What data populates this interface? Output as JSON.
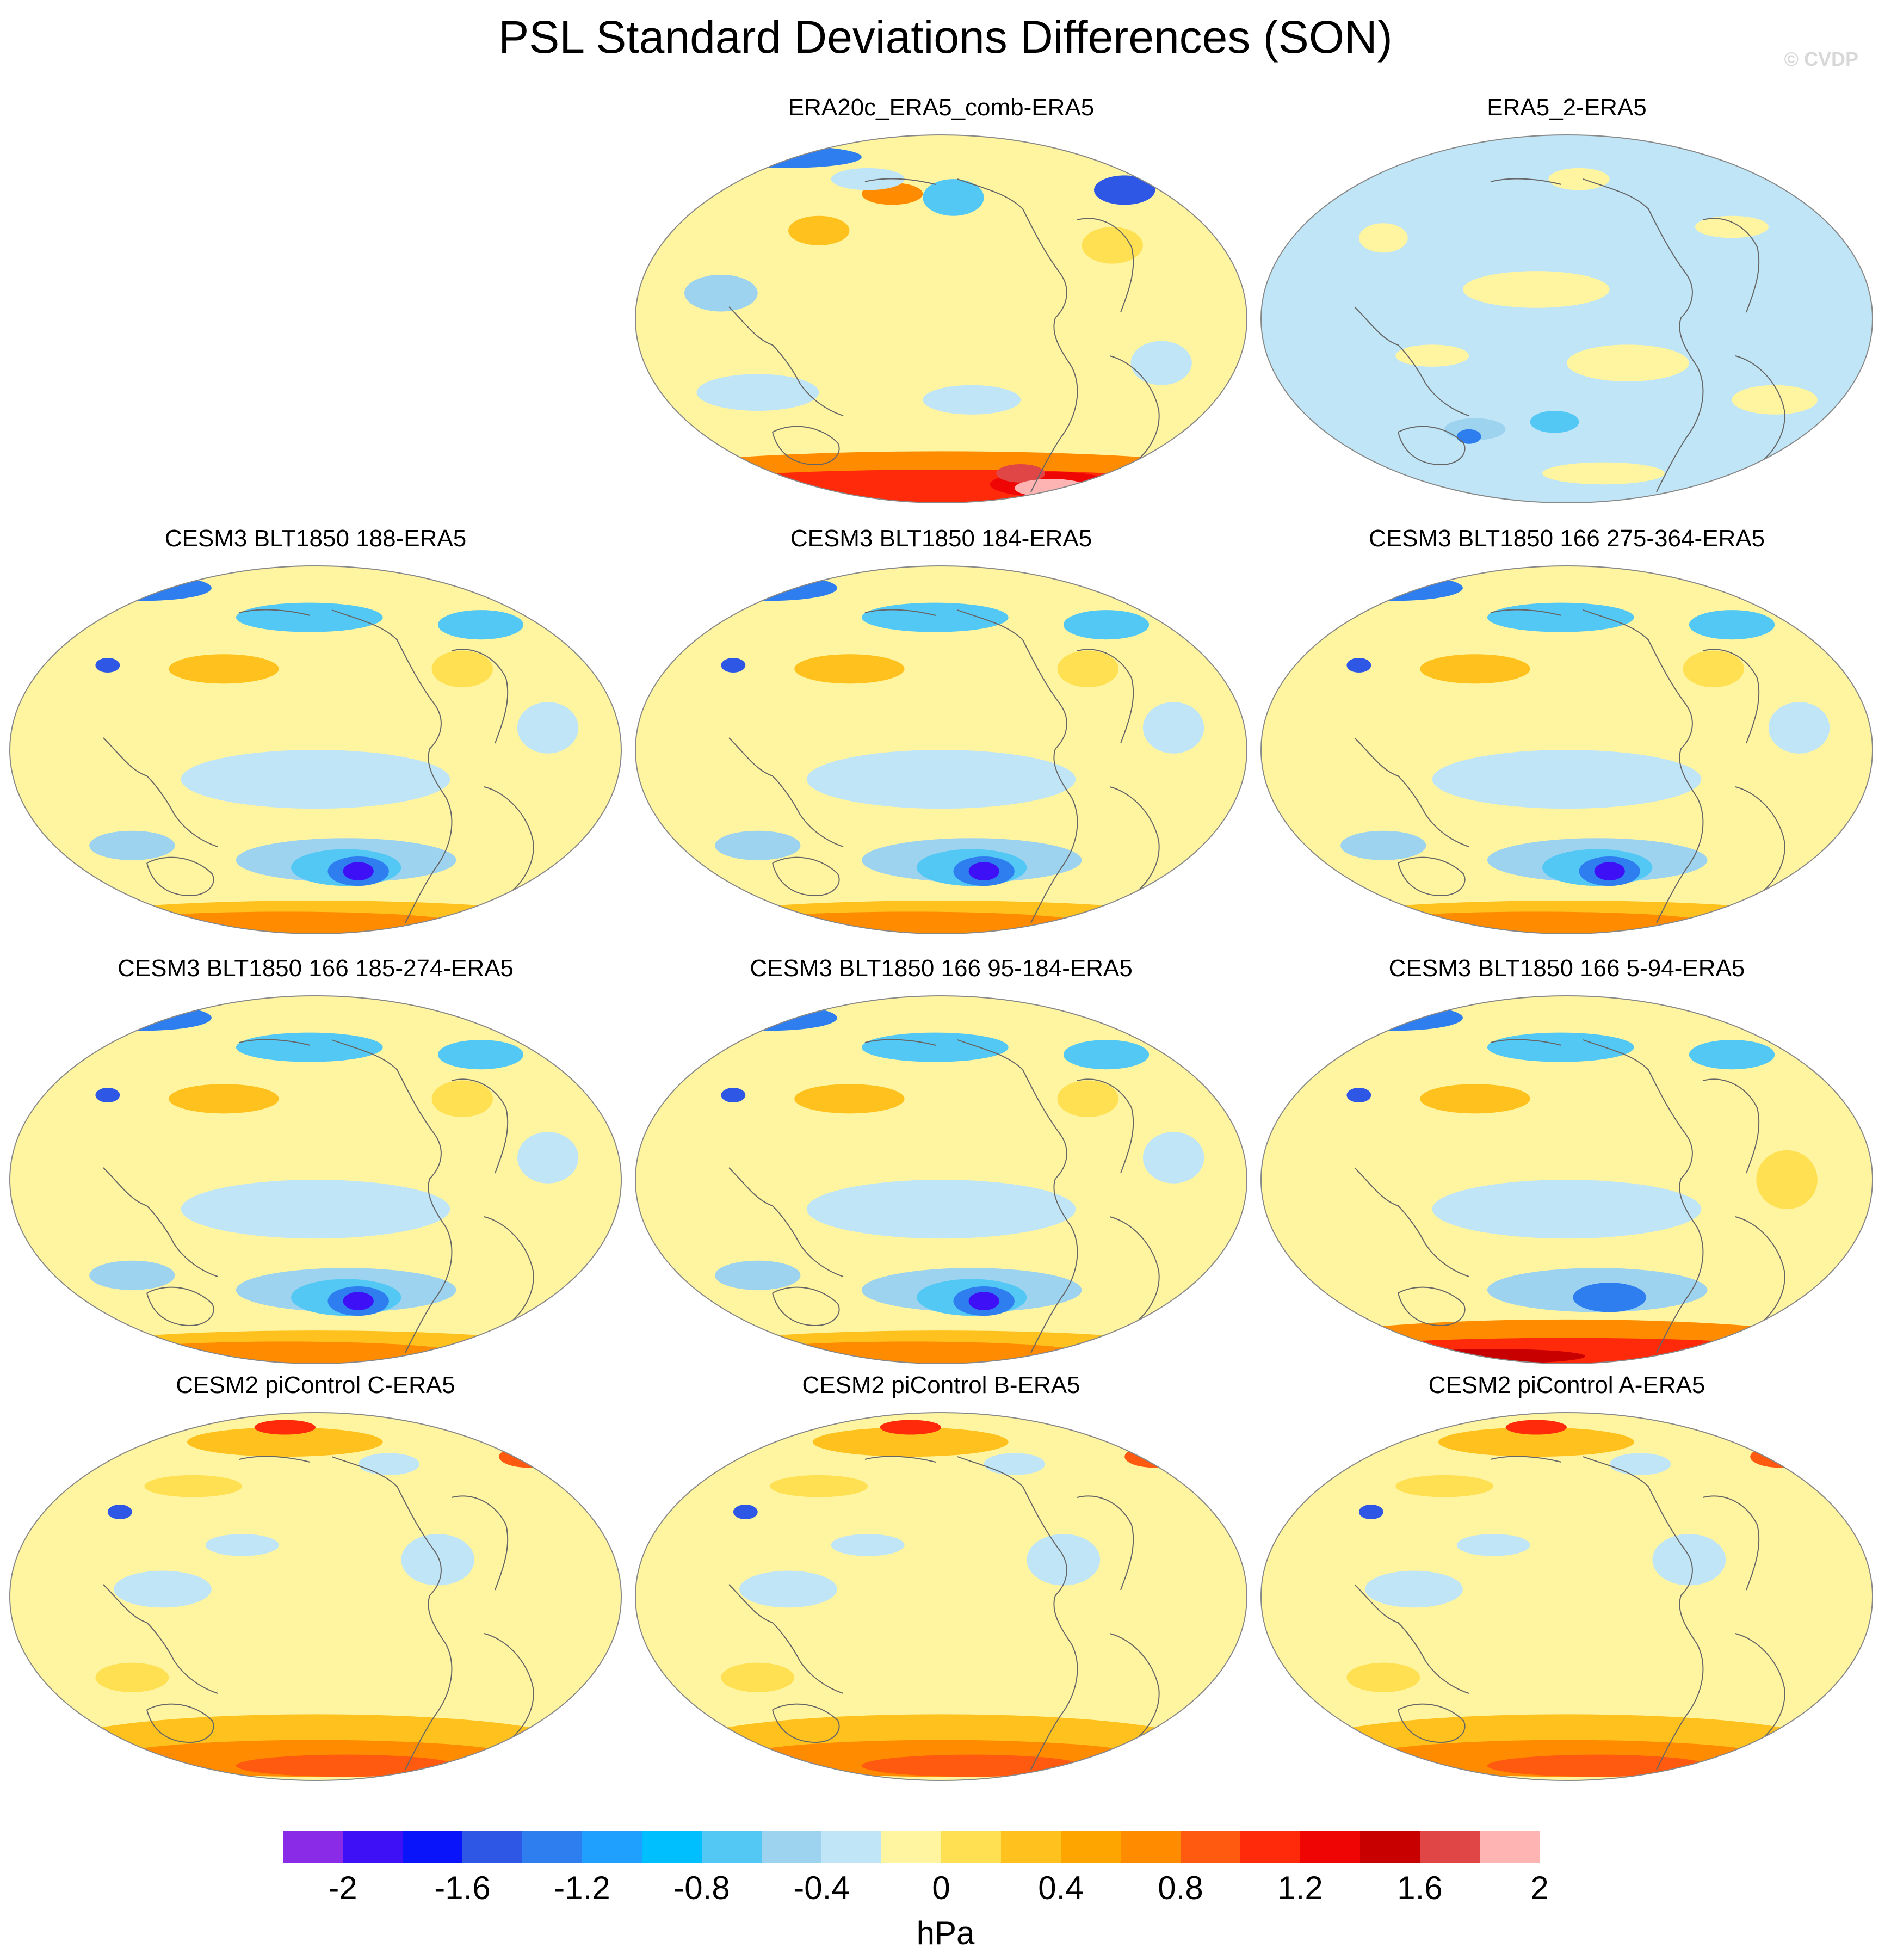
{
  "title": "PSL Standard Deviations Differences (SON)",
  "watermark": "© CVDP",
  "units": "hPa",
  "panels": [
    {
      "title": "ERA20c_ERA5_comb-ERA5",
      "scheme": "era20c"
    },
    {
      "title": "ERA5_2-ERA5",
      "scheme": "era5"
    },
    {
      "title": "CESM3 BLT1850 188-ERA5",
      "scheme": "cesm3"
    },
    {
      "title": "CESM3 BLT1850 184-ERA5",
      "scheme": "cesm3"
    },
    {
      "title": "CESM3 BLT1850 166 275-364-ERA5",
      "scheme": "cesm3"
    },
    {
      "title": "CESM3 BLT1850 166 185-274-ERA5",
      "scheme": "cesm3"
    },
    {
      "title": "CESM3 BLT1850 166 95-184-ERA5",
      "scheme": "cesm3"
    },
    {
      "title": "CESM3 BLT1850 166 5-94-ERA5",
      "scheme": "cesm3s"
    },
    {
      "title": "CESM2 piControl C-ERA5",
      "scheme": "cesm2"
    },
    {
      "title": "CESM2 piControl B-ERA5",
      "scheme": "cesm2"
    },
    {
      "title": "CESM2 piControl A-ERA5",
      "scheme": "cesm2"
    }
  ],
  "colorbar": {
    "colors": [
      "#8a2be8",
      "#3d10f5",
      "#0a14fa",
      "#2e57e6",
      "#2e7ef0",
      "#1fa0ff",
      "#00bfff",
      "#54c8f5",
      "#9dd3ef",
      "#bfe5f7",
      "#fff5a0",
      "#ffe052",
      "#ffc11e",
      "#ffa500",
      "#ff8c00",
      "#ff5a0f",
      "#ff2a0a",
      "#f00505",
      "#c80000",
      "#e04646",
      "#ffb4b4"
    ],
    "ticks": [
      "-2",
      "-1.6",
      "-1.2",
      "-0.8",
      "-0.4",
      "0",
      "0.4",
      "0.8",
      "1.2",
      "1.6",
      "2"
    ]
  }
}
